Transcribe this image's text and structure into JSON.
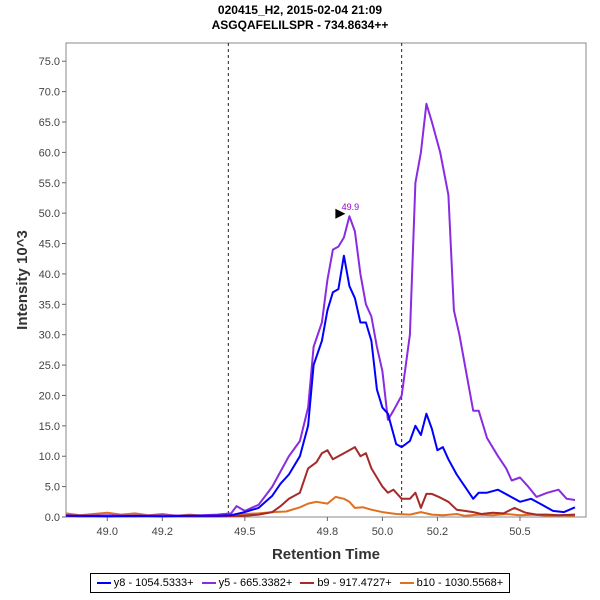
{
  "chart_data": {
    "type": "line",
    "title": "020415_H2, 2015-02-04 21:09",
    "subtitle": "ASGQAFELILSPR - 734.8634++",
    "xlabel": "Retention Time",
    "ylabel": "Intensity 10^3",
    "xlim": [
      48.85,
      50.74
    ],
    "ylim": [
      0,
      78
    ],
    "xticks": [
      49.0,
      49.2,
      49.5,
      49.8,
      50.0,
      50.2,
      50.5
    ],
    "xtick_labels": [
      "49.0",
      "49.2",
      "49.5",
      "49.8",
      "50.0",
      "50.2",
      "50.5"
    ],
    "yticks": [
      0,
      5,
      10,
      15,
      20,
      25,
      30,
      35,
      40,
      45,
      50,
      55,
      60,
      65,
      70,
      75
    ],
    "ytick_labels": [
      "0.0",
      "5.0",
      "10.0",
      "15.0",
      "20.0",
      "25.0",
      "30.0",
      "35.0",
      "40.0",
      "45.0",
      "50.0",
      "55.0",
      "60.0",
      "65.0",
      "70.0",
      "75.0"
    ],
    "integration_bounds": [
      49.44,
      50.07
    ],
    "annotation": {
      "text": "49.9",
      "x": 49.88,
      "y": 49.9,
      "color": "#9400d3"
    },
    "grid": false,
    "legend_position": "bottom",
    "series": [
      {
        "name": "y8 - 1054.5333+",
        "color": "#0000ff",
        "points": [
          [
            48.85,
            0.2
          ],
          [
            48.9,
            0.2
          ],
          [
            49.0,
            0.1
          ],
          [
            49.1,
            0.2
          ],
          [
            49.2,
            0.1
          ],
          [
            49.3,
            0.2
          ],
          [
            49.4,
            0.2
          ],
          [
            49.45,
            0.3
          ],
          [
            49.5,
            0.8
          ],
          [
            49.55,
            1.5
          ],
          [
            49.6,
            3.5
          ],
          [
            49.63,
            5.5
          ],
          [
            49.66,
            7.0
          ],
          [
            49.7,
            10.0
          ],
          [
            49.73,
            15.0
          ],
          [
            49.75,
            25.0
          ],
          [
            49.78,
            29.0
          ],
          [
            49.8,
            34.0
          ],
          [
            49.82,
            37.0
          ],
          [
            49.84,
            37.5
          ],
          [
            49.86,
            43.0
          ],
          [
            49.88,
            38.0
          ],
          [
            49.9,
            36.0
          ],
          [
            49.92,
            32.0
          ],
          [
            49.94,
            32.0
          ],
          [
            49.96,
            29.0
          ],
          [
            49.98,
            21.0
          ],
          [
            50.0,
            18.0
          ],
          [
            50.02,
            17.0
          ],
          [
            50.05,
            12.0
          ],
          [
            50.07,
            11.5
          ],
          [
            50.1,
            12.5
          ],
          [
            50.12,
            15.0
          ],
          [
            50.14,
            13.5
          ],
          [
            50.16,
            17.0
          ],
          [
            50.18,
            14.5
          ],
          [
            50.2,
            11.0
          ],
          [
            50.22,
            11.5
          ],
          [
            50.24,
            9.5
          ],
          [
            50.27,
            7.0
          ],
          [
            50.3,
            5.0
          ],
          [
            50.33,
            3.0
          ],
          [
            50.35,
            4.0
          ],
          [
            50.38,
            4.0
          ],
          [
            50.42,
            4.5
          ],
          [
            50.46,
            3.5
          ],
          [
            50.5,
            2.5
          ],
          [
            50.54,
            3.0
          ],
          [
            50.58,
            2.0
          ],
          [
            50.62,
            1.0
          ],
          [
            50.66,
            0.8
          ],
          [
            50.7,
            1.6
          ]
        ]
      },
      {
        "name": "y5 - 665.3382+",
        "color": "#8a2be2",
        "points": [
          [
            48.85,
            0.3
          ],
          [
            48.9,
            0.2
          ],
          [
            49.0,
            0.3
          ],
          [
            49.1,
            0.2
          ],
          [
            49.2,
            0.3
          ],
          [
            49.3,
            0.2
          ],
          [
            49.4,
            0.4
          ],
          [
            49.45,
            0.6
          ],
          [
            49.47,
            1.8
          ],
          [
            49.5,
            1.0
          ],
          [
            49.55,
            2.0
          ],
          [
            49.6,
            5.0
          ],
          [
            49.63,
            7.5
          ],
          [
            49.66,
            10.0
          ],
          [
            49.7,
            12.5
          ],
          [
            49.73,
            18.0
          ],
          [
            49.75,
            28.0
          ],
          [
            49.78,
            32.0
          ],
          [
            49.8,
            39.0
          ],
          [
            49.82,
            44.0
          ],
          [
            49.84,
            44.5
          ],
          [
            49.86,
            46.0
          ],
          [
            49.88,
            49.5
          ],
          [
            49.9,
            47.0
          ],
          [
            49.92,
            40.0
          ],
          [
            49.94,
            35.0
          ],
          [
            49.96,
            33.0
          ],
          [
            49.98,
            28.0
          ],
          [
            50.0,
            24.0
          ],
          [
            50.02,
            16.0
          ],
          [
            50.04,
            17.5
          ],
          [
            50.07,
            20.0
          ],
          [
            50.1,
            30.0
          ],
          [
            50.12,
            55.0
          ],
          [
            50.14,
            60.0
          ],
          [
            50.16,
            68.0
          ],
          [
            50.18,
            65.0
          ],
          [
            50.21,
            60.0
          ],
          [
            50.24,
            53.0
          ],
          [
            50.26,
            34.0
          ],
          [
            50.28,
            30.0
          ],
          [
            50.3,
            25.0
          ],
          [
            50.33,
            17.5
          ],
          [
            50.35,
            17.5
          ],
          [
            50.38,
            13.0
          ],
          [
            50.42,
            10.0
          ],
          [
            50.45,
            8.0
          ],
          [
            50.47,
            6.0
          ],
          [
            50.5,
            6.5
          ],
          [
            50.53,
            5.0
          ],
          [
            50.56,
            3.3
          ],
          [
            50.6,
            4.0
          ],
          [
            50.64,
            4.5
          ],
          [
            50.67,
            3.0
          ],
          [
            50.7,
            2.8
          ]
        ]
      },
      {
        "name": "b9 - 917.4727+",
        "color": "#a52a2a",
        "points": [
          [
            48.85,
            0.2
          ],
          [
            48.9,
            0.1
          ],
          [
            49.0,
            0.2
          ],
          [
            49.1,
            0.1
          ],
          [
            49.2,
            0.2
          ],
          [
            49.3,
            0.1
          ],
          [
            49.4,
            0.1
          ],
          [
            49.5,
            0.2
          ],
          [
            49.55,
            0.4
          ],
          [
            49.6,
            0.8
          ],
          [
            49.63,
            1.8
          ],
          [
            49.66,
            3.0
          ],
          [
            49.7,
            4.0
          ],
          [
            49.73,
            8.0
          ],
          [
            49.76,
            9.0
          ],
          [
            49.78,
            10.5
          ],
          [
            49.8,
            11.0
          ],
          [
            49.82,
            9.5
          ],
          [
            49.84,
            10.0
          ],
          [
            49.86,
            10.5
          ],
          [
            49.88,
            11.0
          ],
          [
            49.9,
            11.5
          ],
          [
            49.92,
            10.0
          ],
          [
            49.94,
            10.5
          ],
          [
            49.96,
            8.0
          ],
          [
            49.98,
            6.5
          ],
          [
            50.0,
            5.0
          ],
          [
            50.02,
            4.0
          ],
          [
            50.04,
            4.5
          ],
          [
            50.07,
            3.0
          ],
          [
            50.1,
            3.0
          ],
          [
            50.12,
            4.0
          ],
          [
            50.14,
            1.5
          ],
          [
            50.16,
            3.8
          ],
          [
            50.18,
            3.8
          ],
          [
            50.21,
            3.2
          ],
          [
            50.24,
            2.5
          ],
          [
            50.27,
            1.2
          ],
          [
            50.3,
            1.0
          ],
          [
            50.33,
            0.8
          ],
          [
            50.36,
            0.5
          ],
          [
            50.4,
            0.7
          ],
          [
            50.44,
            0.6
          ],
          [
            50.48,
            1.5
          ],
          [
            50.52,
            0.7
          ],
          [
            50.56,
            0.4
          ],
          [
            50.6,
            0.4
          ],
          [
            50.64,
            0.3
          ],
          [
            50.7,
            0.4
          ]
        ]
      },
      {
        "name": "b10 - 1030.5568+",
        "color": "#e07020",
        "points": [
          [
            48.85,
            0.6
          ],
          [
            48.9,
            0.3
          ],
          [
            48.95,
            0.5
          ],
          [
            49.0,
            0.7
          ],
          [
            49.05,
            0.4
          ],
          [
            49.1,
            0.6
          ],
          [
            49.15,
            0.3
          ],
          [
            49.2,
            0.5
          ],
          [
            49.25,
            0.2
          ],
          [
            49.3,
            0.4
          ],
          [
            49.35,
            0.2
          ],
          [
            49.4,
            0.3
          ],
          [
            49.45,
            0.3
          ],
          [
            49.5,
            0.5
          ],
          [
            49.55,
            0.6
          ],
          [
            49.6,
            0.8
          ],
          [
            49.65,
            0.9
          ],
          [
            49.7,
            1.6
          ],
          [
            49.73,
            2.2
          ],
          [
            49.76,
            2.5
          ],
          [
            49.8,
            2.2
          ],
          [
            49.83,
            3.3
          ],
          [
            49.86,
            3.0
          ],
          [
            49.88,
            2.5
          ],
          [
            49.9,
            1.5
          ],
          [
            49.93,
            1.6
          ],
          [
            49.96,
            1.2
          ],
          [
            50.0,
            0.8
          ],
          [
            50.05,
            0.5
          ],
          [
            50.1,
            0.4
          ],
          [
            50.14,
            0.8
          ],
          [
            50.18,
            0.4
          ],
          [
            50.22,
            0.3
          ],
          [
            50.27,
            0.5
          ],
          [
            50.3,
            0.2
          ],
          [
            50.35,
            0.4
          ],
          [
            50.4,
            0.3
          ],
          [
            50.45,
            0.5
          ],
          [
            50.5,
            0.3
          ],
          [
            50.55,
            0.4
          ],
          [
            50.6,
            0.2
          ],
          [
            50.65,
            0.3
          ],
          [
            50.7,
            0.2
          ]
        ]
      }
    ]
  }
}
